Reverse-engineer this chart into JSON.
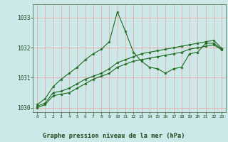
{
  "background_color": "#cce8e8",
  "grid_color": "#e8aaaa",
  "line_color": "#1a6b1a",
  "title": "Graphe pression niveau de la mer (hPa)",
  "xlim": [
    -0.5,
    23.5
  ],
  "ylim": [
    1029.85,
    1033.45
  ],
  "yticks": [
    1030,
    1031,
    1032,
    1033
  ],
  "xticks": [
    0,
    1,
    2,
    3,
    4,
    5,
    6,
    7,
    8,
    9,
    10,
    11,
    12,
    13,
    14,
    15,
    16,
    17,
    18,
    19,
    20,
    21,
    22,
    23
  ],
  "series1_x": [
    0,
    1,
    2,
    3,
    4,
    5,
    6,
    7,
    8,
    9,
    10,
    11,
    12,
    13,
    14,
    15,
    16,
    17,
    18,
    19,
    20,
    21,
    22,
    23
  ],
  "series1_y": [
    1030.1,
    1030.3,
    1030.7,
    1030.95,
    1031.15,
    1031.35,
    1031.6,
    1031.8,
    1031.95,
    1032.2,
    1033.2,
    1032.55,
    1031.85,
    1031.55,
    1031.35,
    1031.3,
    1031.15,
    1031.3,
    1031.35,
    1031.8,
    1031.85,
    1032.15,
    1032.15,
    1031.95
  ],
  "series2_x": [
    0,
    1,
    2,
    3,
    4,
    5,
    6,
    7,
    8,
    9,
    10,
    11,
    12,
    13,
    14,
    15,
    16,
    17,
    18,
    19,
    20,
    21,
    22,
    23
  ],
  "series2_y": [
    1030.05,
    1030.15,
    1030.5,
    1030.55,
    1030.65,
    1030.8,
    1030.95,
    1031.05,
    1031.15,
    1031.3,
    1031.5,
    1031.6,
    1031.7,
    1031.8,
    1031.85,
    1031.9,
    1031.95,
    1032.0,
    1032.05,
    1032.1,
    1032.15,
    1032.2,
    1032.25,
    1031.98
  ],
  "series3_x": [
    0,
    1,
    2,
    3,
    4,
    5,
    6,
    7,
    8,
    9,
    10,
    11,
    12,
    13,
    14,
    15,
    16,
    17,
    18,
    19,
    20,
    21,
    22,
    23
  ],
  "series3_y": [
    1030.0,
    1030.1,
    1030.4,
    1030.45,
    1030.5,
    1030.65,
    1030.8,
    1030.95,
    1031.05,
    1031.15,
    1031.35,
    1031.45,
    1031.55,
    1031.6,
    1031.65,
    1031.7,
    1031.75,
    1031.8,
    1031.85,
    1031.95,
    1032.0,
    1032.05,
    1032.1,
    1031.93
  ]
}
